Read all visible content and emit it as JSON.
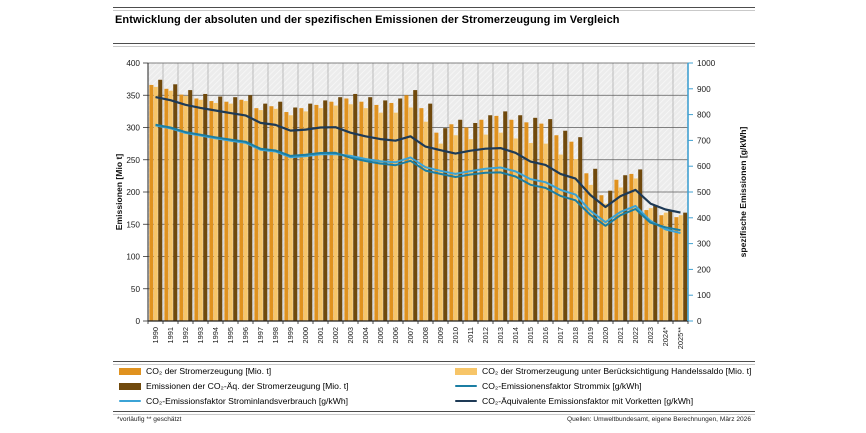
{
  "title": "Entwicklung der absoluten und der spezifischen Emissionen der Stromerzeugung im Vergleich",
  "footnote_left": "*vorläufig   ** geschätzt",
  "footnote_right": "Quellen: Umweltbundesamt, eigene Berechnungen, März 2026",
  "chart_data": {
    "type": "bar",
    "subtype": "grouped bars with overlaid lines, dual axes",
    "grid": true,
    "legend_position": "bottom",
    "categories": [
      "1990",
      "1991",
      "1992",
      "1993",
      "1994",
      "1995",
      "1996",
      "1997",
      "1998",
      "1999",
      "2000",
      "2001",
      "2002",
      "2003",
      "2004",
      "2005",
      "2006",
      "2007",
      "2008",
      "2009",
      "2010",
      "2011",
      "2012",
      "2013",
      "2014",
      "2015",
      "2016",
      "2017",
      "2018",
      "2019",
      "2020",
      "2021",
      "2022",
      "2023",
      "2024*",
      "2025**"
    ],
    "left_axis": {
      "label": "Emissionen [Mio t]",
      "min": 0,
      "max": 400,
      "step": 50,
      "ticks": [
        "0",
        "50",
        "100",
        "150",
        "200",
        "250",
        "300",
        "350",
        "400"
      ]
    },
    "right_axis": {
      "label": "spezifische Emissionen [g/kWh]",
      "min": 0,
      "max": 1000,
      "step": 100,
      "ticks": [
        "0",
        "100",
        "200",
        "300",
        "400",
        "500",
        "600",
        "700",
        "800",
        "900",
        "1000"
      ],
      "spine_color": "#41A0D0"
    },
    "bar_series": [
      {
        "name": "CO₂ der Stromerzeugung [Mio. t]",
        "color": "#E0921F",
        "axis": "left",
        "values": [
          366,
          360,
          351,
          345,
          341,
          340,
          343,
          330,
          333,
          324,
          330,
          335,
          340,
          345,
          340,
          335,
          338,
          350,
          330,
          292,
          305,
          300,
          312,
          318,
          312,
          308,
          306,
          288,
          278,
          229,
          195,
          219,
          228,
          172,
          164,
          161
        ]
      },
      {
        "name": "CO₂  der Stromerzeugung unter Berücksichtigung Handelssaldo [Mio. t]",
        "color": "#F7C568",
        "axis": "left",
        "values": [
          363,
          357,
          349,
          343,
          338,
          337,
          341,
          327,
          329,
          319,
          325,
          330,
          334,
          336,
          330,
          323,
          323,
          331,
          309,
          275,
          288,
          282,
          289,
          292,
          283,
          276,
          275,
          258,
          251,
          211,
          182,
          207,
          221,
          175,
          168,
          164
        ]
      },
      {
        "name": "Emissionen der CO₂-Äq. der Stromerzeugung [Mio. t]",
        "color": "#70490C",
        "axis": "left",
        "values": [
          374,
          367,
          358,
          352,
          348,
          347,
          350,
          337,
          340,
          331,
          337,
          342,
          347,
          352,
          347,
          342,
          345,
          358,
          337,
          299,
          312,
          307,
          319,
          325,
          319,
          315,
          313,
          295,
          285,
          236,
          202,
          226,
          235,
          179,
          171,
          168
        ]
      }
    ],
    "line_series": [
      {
        "name": "CO₂-Emissionensfaktor Strommix [g/kWh]",
        "color": "#1B7EA3",
        "axis": "right",
        "values": [
          761,
          750,
          732,
          722,
          712,
          703,
          695,
          668,
          661,
          640,
          644,
          651,
          652,
          633,
          620,
          610,
          604,
          621,
          583,
          570,
          558,
          568,
          575,
          576,
          560,
          528,
          516,
          485,
          468,
          411,
          369,
          410,
          434,
          381,
          363,
          352
        ]
      },
      {
        "name": "CO₂-Emissionsfaktor Strominlandsverbrauch [g/kWh]",
        "color": "#3BA3D6",
        "axis": "right",
        "values": [
          758,
          747,
          729,
          719,
          708,
          699,
          691,
          664,
          657,
          635,
          639,
          646,
          647,
          640,
          628,
          619,
          615,
          634,
          596,
          582,
          570,
          581,
          590,
          595,
          580,
          550,
          538,
          508,
          490,
          427,
          383,
          423,
          446,
          388,
          355,
          341
        ]
      },
      {
        "name": "CO₂-Äquivalente  Emissionsfaktor mit Vorketten [g/kWh]",
        "color": "#1E3A56",
        "axis": "right",
        "values": [
          868,
          856,
          838,
          826,
          816,
          806,
          797,
          768,
          760,
          738,
          742,
          750,
          751,
          730,
          716,
          705,
          699,
          716,
          676,
          662,
          649,
          660,
          668,
          670,
          652,
          618,
          605,
          570,
          552,
          488,
          442,
          484,
          508,
          455,
          432,
          420
        ]
      }
    ]
  },
  "legend_layout": [
    {
      "type": "bar",
      "series": 0,
      "col": 0,
      "row": 0
    },
    {
      "type": "bar",
      "series": 1,
      "col": 1,
      "row": 0
    },
    {
      "type": "bar",
      "series": 2,
      "col": 0,
      "row": 1
    },
    {
      "type": "line",
      "series": 0,
      "col": 1,
      "row": 1
    },
    {
      "type": "line",
      "series": 1,
      "col": 0,
      "row": 2
    },
    {
      "type": "line",
      "series": 2,
      "col": 1,
      "row": 2
    }
  ]
}
